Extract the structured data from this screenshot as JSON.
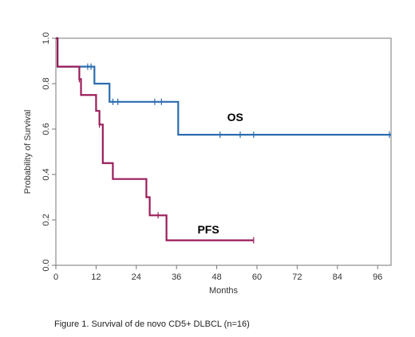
{
  "chart_data": {
    "type": "line",
    "subtype": "kaplan-meier step curve",
    "xlabel": "Months",
    "ylabel": "Probability of Survival",
    "xlim": [
      0,
      100
    ],
    "ylim": [
      0,
      1
    ],
    "x_ticks": [
      0,
      12,
      24,
      36,
      48,
      60,
      72,
      84,
      96
    ],
    "y_ticks": [
      0.0,
      0.2,
      0.4,
      0.6,
      0.8,
      1.0
    ],
    "y_tick_labels": [
      "0.0",
      "0.2",
      "0.4",
      "0.6",
      "0.8",
      "1.0"
    ],
    "grid": false,
    "frame": "box",
    "series": [
      {
        "name": "OS",
        "color": "#2b6cb0",
        "steps": [
          [
            0,
            1.0
          ],
          [
            0.5,
            0.875
          ],
          [
            11.5,
            0.8
          ],
          [
            16,
            0.72
          ],
          [
            36.5,
            0.575
          ],
          [
            100,
            0.575
          ]
        ],
        "censor_marks": [
          9.5,
          10.5,
          17,
          18.5,
          29.5,
          31.5,
          49,
          55,
          59,
          99.5
        ]
      },
      {
        "name": "PFS",
        "color": "#9b1c5a",
        "steps": [
          [
            0,
            1.0
          ],
          [
            0.5,
            0.875
          ],
          [
            7,
            0.82
          ],
          [
            7.5,
            0.75
          ],
          [
            12,
            0.68
          ],
          [
            13,
            0.62
          ],
          [
            14,
            0.45
          ],
          [
            17,
            0.38
          ],
          [
            27,
            0.3
          ],
          [
            28,
            0.22
          ],
          [
            33,
            0.11
          ],
          [
            59,
            0.11
          ]
        ],
        "censor_marks": [
          7,
          13,
          30.5,
          59
        ]
      }
    ],
    "series_labels": [
      {
        "text": "OS",
        "x": 53.5,
        "y": 0.635
      },
      {
        "text": "PFS",
        "x": 45.5,
        "y": 0.14
      }
    ]
  },
  "caption": "Figure 1. Survival of de novo CD5+ DLBCL (n=16)"
}
